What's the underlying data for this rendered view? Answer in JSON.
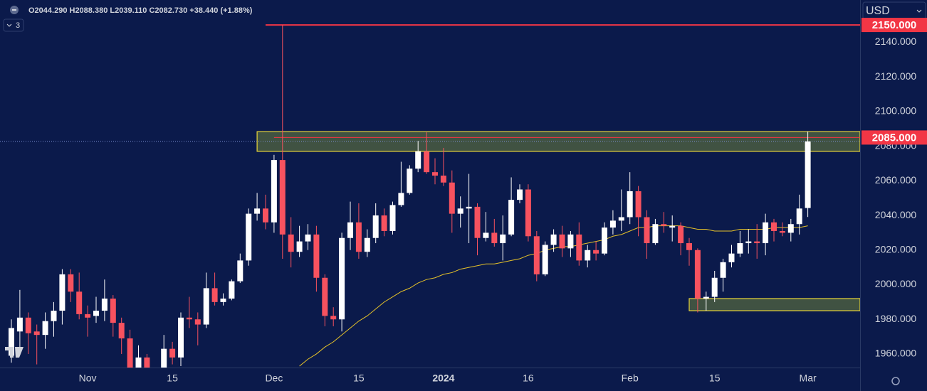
{
  "chart_data": {
    "type": "candlestick",
    "header": {
      "open": "O2044.290",
      "high": "H2088.380",
      "low": "L2039.110",
      "close": "C2082.730",
      "change": "+38.440 (+1.88%)"
    },
    "currency": "USD",
    "indicator_count": "3",
    "categories": [
      null,
      null,
      null,
      null,
      null,
      null,
      null,
      null,
      null,
      "Nov",
      null,
      null,
      null,
      null,
      null,
      null,
      null,
      null,
      null,
      "15",
      null,
      null,
      null,
      null,
      null,
      null,
      null,
      null,
      null,
      null,
      null,
      "Dec",
      null,
      null,
      null,
      null,
      null,
      null,
      null,
      null,
      null,
      "15",
      null,
      null,
      null,
      null,
      null,
      null,
      null,
      null,
      null,
      "2024",
      null,
      null,
      null,
      null,
      null,
      null,
      null,
      null,
      null,
      "16",
      null,
      null,
      null,
      null,
      null,
      null,
      null,
      null,
      null,
      null,
      null,
      "Feb",
      null,
      null,
      null,
      null,
      null,
      null,
      null,
      null,
      null,
      "15",
      null,
      null,
      null,
      null,
      null,
      null,
      null,
      null,
      null,
      null,
      "Mar"
    ],
    "bold_categories": [
      "2024"
    ],
    "open": [
      1959,
      1973,
      1981,
      1973,
      1971,
      1979,
      1985,
      2006,
      1996,
      1983,
      1982,
      1985,
      1992,
      1978,
      1969,
      1950,
      1958,
      1940,
      1946,
      1963,
      1958,
      1981,
      1980,
      1977,
      1998,
      1990,
      1992,
      2002,
      2014,
      2041,
      2044,
      2036,
      2072,
      2029,
      2019,
      2025,
      2029,
      2004,
      1982,
      1980,
      2027,
      2036,
      2019,
      2027,
      2040,
      2031,
      2046,
      2053,
      2067,
      2077,
      2065,
      2063,
      2059,
      2041,
      2044,
      2045,
      2027,
      2030,
      2024,
      2029,
      2049,
      2055,
      2028,
      2006,
      2023,
      2029,
      2021,
      2029,
      2014,
      2020,
      2018,
      2033,
      2037,
      2039,
      2054,
      2039,
      2024,
      2035,
      2033,
      2034,
      2024,
      2020,
      1992,
      1993,
      2004,
      2013,
      2018,
      2024,
      2025,
      2024,
      2036,
      2031,
      2030,
      2035,
      2044.29
    ],
    "high": [
      1980,
      1997,
      1984,
      1977,
      1984,
      1990,
      2009,
      2009,
      2007,
      1988,
      1993,
      2003,
      1994,
      1981,
      1974,
      1965,
      1960,
      1948,
      1971,
      1967,
      1984,
      1993,
      1984,
      2007,
      2007,
      1995,
      2003,
      2018,
      2044,
      2053,
      2052,
      2075,
      2150,
      2039,
      2034,
      2035,
      2034,
      2006,
      1987,
      2030,
      2048,
      2047,
      2032,
      2047,
      2044,
      2048,
      2071,
      2069,
      2083,
      2088,
      2073,
      2079,
      2066,
      2051,
      2064,
      2047,
      2042,
      2038,
      2040,
      2062,
      2058,
      2058,
      2031,
      2025,
      2032,
      2034,
      2031,
      2036,
      2023,
      2025,
      2036,
      2043,
      2055,
      2065,
      2057,
      2043,
      2038,
      2042,
      2040,
      2036,
      2027,
      2021,
      1996,
      2008,
      2015,
      2023,
      2031,
      2032,
      2035,
      2041,
      2038,
      2036,
      2038,
      2052,
      2088.38
    ],
    "low": [
      1955,
      1962,
      1960,
      1954,
      1963,
      1970,
      1977,
      1990,
      1980,
      1970,
      1978,
      1979,
      1970,
      1960,
      1946,
      1945,
      1931,
      1932,
      1936,
      1954,
      1953,
      1975,
      1965,
      1975,
      1988,
      1988,
      1991,
      2001,
      2011,
      2037,
      2032,
      2030,
      2015,
      2010,
      2016,
      2020,
      1996,
      1976,
      1976,
      1973,
      2020,
      2015,
      2016,
      2024,
      2028,
      2029,
      2045,
      2052,
      2065,
      2064,
      2058,
      2057,
      2030,
      2033,
      2024,
      2017,
      2025,
      2022,
      2014,
      2028,
      2047,
      2025,
      2002,
      2005,
      2019,
      2016,
      2016,
      2011,
      2010,
      2014,
      2017,
      2029,
      2031,
      2035,
      2028,
      2015,
      2023,
      2030,
      2025,
      2017,
      2011,
      1984,
      1985,
      1990,
      1996,
      2010,
      2016,
      2018,
      2015,
      2017,
      2025,
      2028,
      2025,
      2029,
      2039.11
    ],
    "close": [
      1975,
      1981,
      1972,
      1971,
      1979,
      1985,
      2006,
      1996,
      1983,
      1981,
      1985,
      1992,
      1978,
      1969,
      1950,
      1958,
      1940,
      1946,
      1963,
      1958,
      1981,
      1980,
      1977,
      1998,
      1990,
      1992,
      2002,
      2014,
      2041,
      2044,
      2036,
      2072,
      2029,
      2019,
      2025,
      2029,
      2004,
      1982,
      1980,
      2027,
      2036,
      2019,
      2027,
      2040,
      2031,
      2046,
      2053,
      2067,
      2077,
      2065,
      2063,
      2059,
      2041,
      2044,
      2045,
      2027,
      2030,
      2024,
      2029,
      2049,
      2055,
      2028,
      2006,
      2023,
      2029,
      2021,
      2029,
      2014,
      2020,
      2018,
      2033,
      2037,
      2039,
      2054,
      2039,
      2024,
      2035,
      2034,
      2034,
      2024,
      2020,
      1992,
      1993,
      2004,
      2013,
      2018,
      2024,
      2025,
      2024,
      2036,
      2031,
      2030,
      2035,
      2044,
      2082.73
    ],
    "up_color": "#ffffff",
    "down_color": "#f7525f",
    "ma": {
      "color": "#e6c229",
      "values": [
        null,
        null,
        null,
        null,
        null,
        null,
        null,
        null,
        null,
        null,
        null,
        null,
        null,
        null,
        null,
        null,
        null,
        null,
        null,
        null,
        null,
        null,
        null,
        null,
        null,
        null,
        null,
        null,
        null,
        null,
        null,
        null,
        null,
        null,
        1953,
        1957,
        1960,
        1964,
        1967,
        1971,
        1975,
        1979,
        1982,
        1986,
        1990,
        1993,
        1996,
        1998,
        2001,
        2003,
        2004,
        2006,
        2007,
        2009,
        2010,
        2011,
        2012,
        2012,
        2013,
        2014,
        2015,
        2017,
        2018,
        2020,
        2021,
        2022,
        2022,
        2023,
        2024,
        2025,
        2026,
        2028,
        2029,
        2031,
        2033,
        2033,
        2034,
        2034,
        2034,
        2034,
        2033,
        2032,
        2032,
        2031,
        2031,
        2031,
        2032,
        2032,
        2032,
        2032,
        2033,
        2033,
        2033,
        2033,
        2034
      ]
    },
    "zones": [
      {
        "start": 29,
        "low": 2077,
        "high": 2088.4
      },
      {
        "start": 80,
        "low": 1985,
        "high": 1992
      }
    ],
    "zone_color": "#e8d53a",
    "hlines": [
      {
        "value": 2150,
        "start": 30,
        "color": "#f23645",
        "label": "2150.000"
      },
      {
        "value": 2085,
        "start": 31,
        "color": "#f23645",
        "label": "2085.000"
      }
    ],
    "ylim": [
      1953,
      2164.4
    ],
    "yticks": [
      {
        "value": 1960,
        "label": "1960.000"
      },
      {
        "value": 1980,
        "label": "1980.000"
      },
      {
        "value": 2000,
        "label": "2000.000"
      },
      {
        "value": 2020,
        "label": "2020.000"
      },
      {
        "value": 2040,
        "label": "2040.000"
      },
      {
        "value": 2060,
        "label": "2060.000"
      },
      {
        "value": 2080,
        "label": "2080.000"
      },
      {
        "value": 2100,
        "label": "2100.000"
      },
      {
        "value": 2120,
        "label": "2120.000"
      },
      {
        "value": 2140,
        "label": "2140.000"
      }
    ],
    "grid": false
  }
}
